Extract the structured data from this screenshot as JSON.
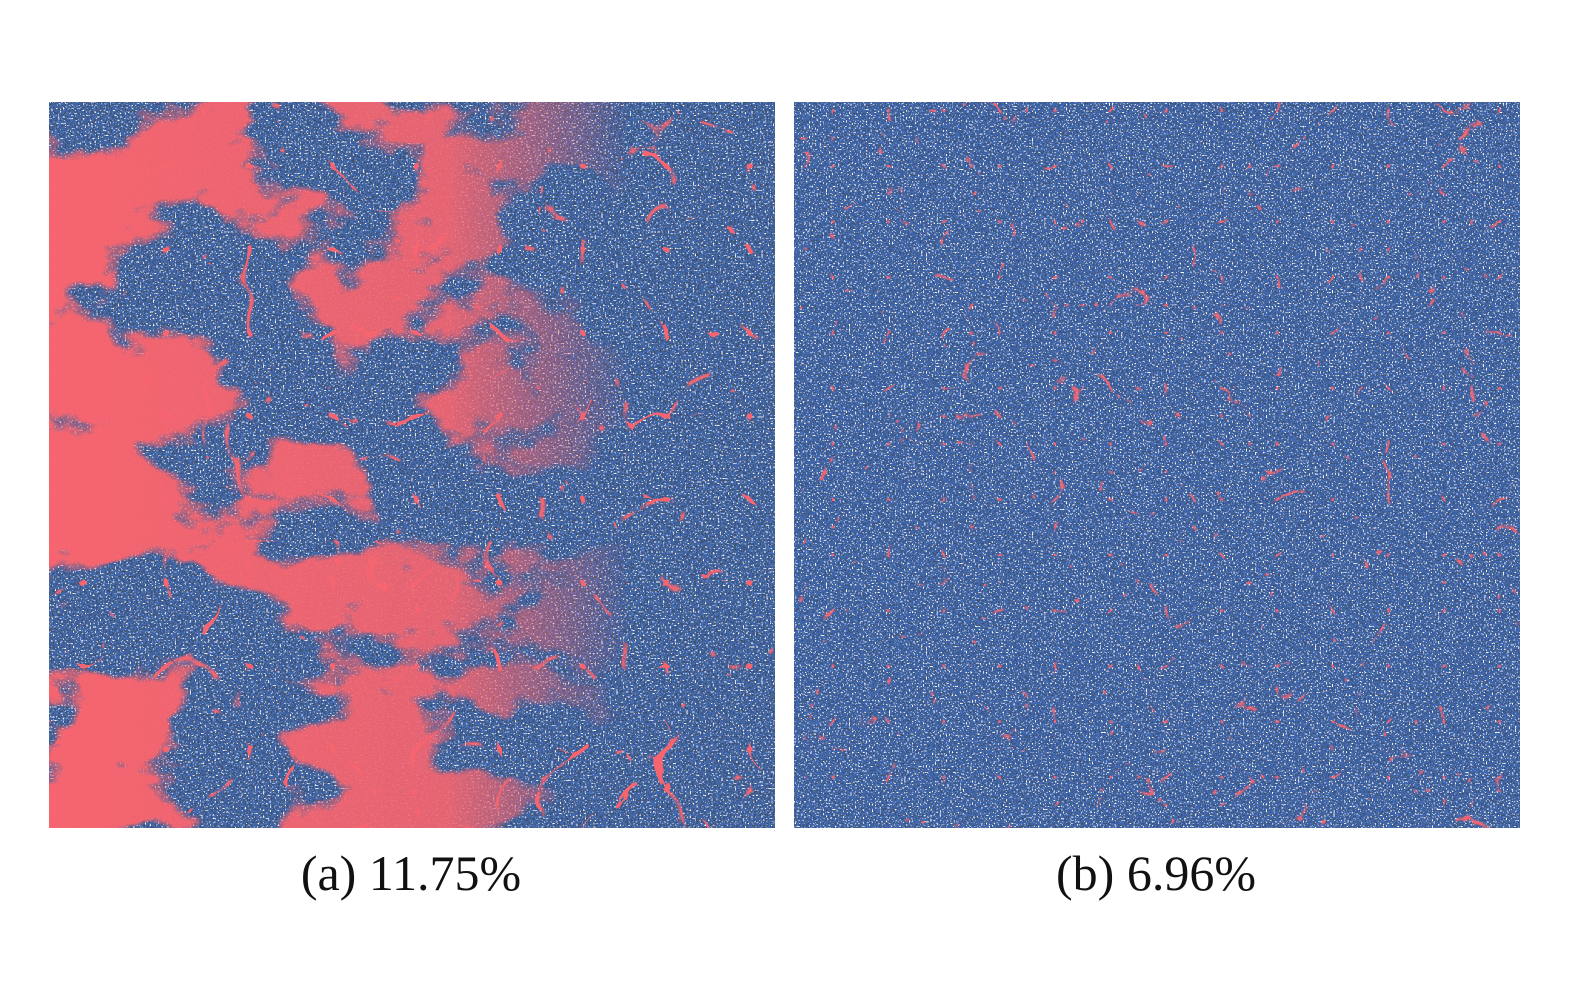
{
  "panels": [
    {
      "caption": "(a) 11.75%"
    },
    {
      "caption": "(b) 6.96%"
    }
  ]
}
